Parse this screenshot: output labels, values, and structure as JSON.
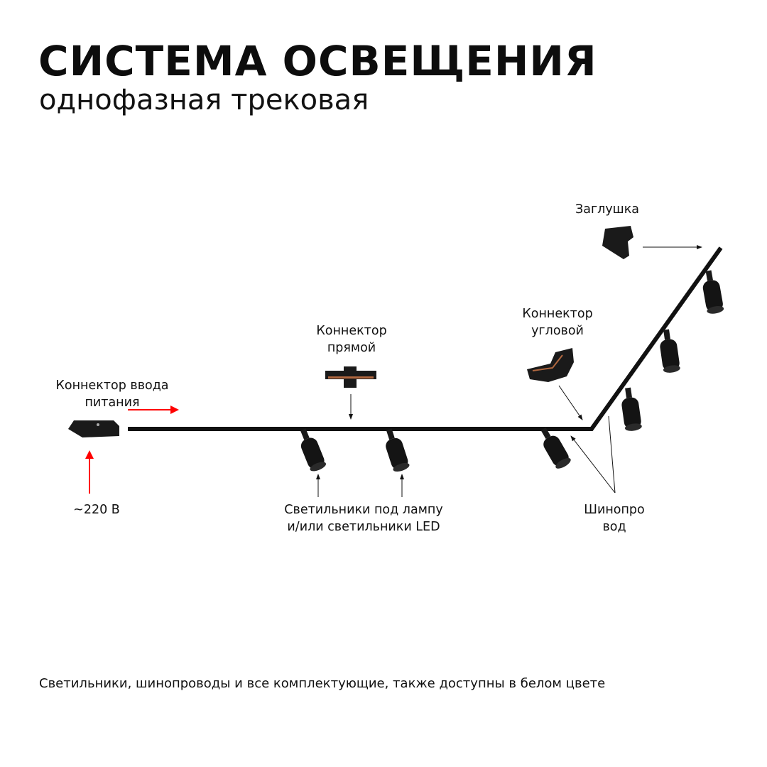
{
  "header": {
    "title": "СИСТЕМА ОСВЕЩЕНИЯ",
    "subtitle": "однофазная трековая"
  },
  "labels": {
    "power_connector": [
      "Коннектор ввода",
      "питания"
    ],
    "voltage": "~220 В",
    "straight_connector": [
      "Коннектор",
      "прямой"
    ],
    "corner_connector": [
      "Коннектор",
      "угловой"
    ],
    "end_cap": "Заглушка",
    "fixtures": [
      "Светильники под лампу",
      "и/или светильники LED"
    ],
    "track": [
      "Шинопро",
      "вод"
    ]
  },
  "footer": "Светильники, шинопроводы и все комплектующие, также доступны в белом цвете",
  "colors": {
    "power_arrow": "#ff0000",
    "track": "#111111",
    "accent_copper": "#b0673f"
  }
}
